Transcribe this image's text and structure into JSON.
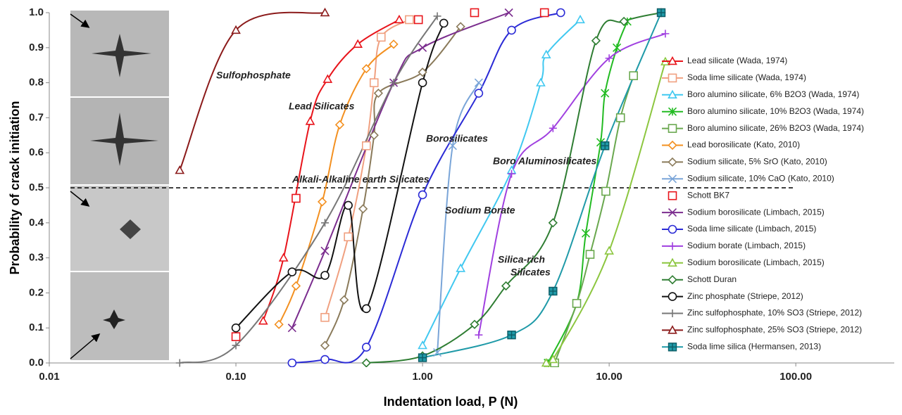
{
  "chart_data": {
    "type": "line",
    "x_label": "Indentation load, P (N)",
    "y_label": "Probability of crack initiation",
    "x_scale": "log",
    "xlim": [
      0.01,
      337
    ],
    "xticks": [
      0.01,
      {
        "value": 0.1,
        "label": "0.10"
      },
      {
        "value": 1,
        "label": "1.00"
      },
      {
        "value": 10,
        "label": "10.00"
      },
      {
        "value": 100,
        "label": "100.00"
      }
    ],
    "ylim": [
      0,
      1
    ],
    "yticks": [
      {
        "value": 0,
        "label": "0.0"
      },
      0.1,
      0.2,
      0.3,
      0.4,
      0.5,
      0.6,
      0.7,
      0.8,
      0.9,
      {
        "value": 1,
        "label": "1.0"
      }
    ],
    "threshold": 0.5,
    "annotations": [
      "Sulfophosphate",
      "Lead Silicates",
      "Alkali-Alkaline earth Silicates",
      "Borosilicates",
      "Boro Aluminosilicates",
      "Sodium Borate",
      "Silica-rich",
      "Silicates"
    ],
    "series": [
      {
        "name": "Lead silicate (Wada, 1974)",
        "color": "#e8141b",
        "marker": "triangle",
        "x": [
          0.14,
          0.18,
          0.25,
          0.31,
          0.45,
          0.75
        ],
        "values": [
          0.12,
          0.3,
          0.69,
          0.81,
          0.91,
          0.98
        ]
      },
      {
        "name": "Soda lime silicate (Wada, 1974)",
        "color": "#f0a080",
        "marker": "square",
        "x": [
          0.3,
          0.4,
          0.5,
          0.55,
          0.6,
          0.85
        ],
        "values": [
          0.13,
          0.36,
          0.62,
          0.8,
          0.93,
          0.98
        ]
      },
      {
        "name": "Boro alumino silicate, 6% B2O3  (Wada, 1974)",
        "color": "#40c8f0",
        "marker": "triangle",
        "x": [
          1.0,
          1.6,
          3.0,
          4.3,
          4.6,
          7.0
        ],
        "values": [
          0.05,
          0.27,
          0.55,
          0.8,
          0.88,
          0.98
        ]
      },
      {
        "name": "Boro alumino silicate, 10% B2O3  (Wada, 1974)",
        "color": "#22bb22",
        "marker": "star",
        "x": [
          4.7,
          6.7,
          7.5,
          9.0,
          9.5,
          11,
          12.5
        ],
        "values": [
          0.0,
          0.17,
          0.37,
          0.63,
          0.77,
          0.9,
          0.975
        ]
      },
      {
        "name": "Boro alumino silicate, 26% B2O3  (Wada, 1974)",
        "color": "#6aa84f",
        "marker": "square",
        "x": [
          5.1,
          6.7,
          7.9,
          9.6,
          11.5,
          13.5
        ],
        "values": [
          0.0,
          0.17,
          0.31,
          0.49,
          0.7,
          0.82
        ]
      },
      {
        "name": "Lead borosilicate (Kato, 2010)",
        "color": "#f39020",
        "marker": "diamond",
        "x": [
          0.17,
          0.21,
          0.29,
          0.36,
          0.5,
          0.7
        ],
        "values": [
          0.11,
          0.22,
          0.46,
          0.68,
          0.84,
          0.91
        ]
      },
      {
        "name": "Sodium silicate, 5% SrO (Kato, 2010)",
        "color": "#8a7a5a",
        "marker": "diamond",
        "x": [
          0.3,
          0.38,
          0.48,
          0.55,
          0.58,
          1.0,
          1.6
        ],
        "values": [
          0.05,
          0.18,
          0.44,
          0.65,
          0.77,
          0.83,
          0.96
        ]
      },
      {
        "name": "Sodium silicate, 10% CaO (Kato, 2010)",
        "color": "#7aa5d8",
        "marker": "x",
        "x": [
          1.2,
          1.45,
          2.0
        ],
        "values": [
          0.03,
          0.62,
          0.8
        ]
      },
      {
        "name": "Schott BK7",
        "color": "#e8141b",
        "marker": "square",
        "show_line": false,
        "x": [
          0.1,
          0.21,
          0.95,
          1.9,
          4.5
        ],
        "values": [
          0.075,
          0.47,
          0.98,
          1.0,
          1.0
        ]
      },
      {
        "name": "Sodium borosilicate (Limbach, 2015)",
        "color": "#7b2d8e",
        "marker": "x",
        "x": [
          0.2,
          0.3,
          0.7,
          1.0,
          2.9
        ],
        "values": [
          0.1,
          0.32,
          0.8,
          0.9,
          1.0
        ]
      },
      {
        "name": "Soda lime silicate (Limbach, 2015)",
        "color": "#2b2bd6",
        "marker": "circle",
        "x": [
          0.2,
          0.3,
          0.5,
          1.0,
          2.0,
          3.0,
          5.5
        ],
        "values": [
          0.0,
          0.01,
          0.045,
          0.48,
          0.77,
          0.95,
          1.0
        ]
      },
      {
        "name": "Sodium borate (Limbach, 2015)",
        "color": "#a040e0",
        "marker": "plus",
        "x": [
          2.0,
          3.0,
          5.0,
          10,
          20
        ],
        "values": [
          0.08,
          0.54,
          0.67,
          0.87,
          0.94
        ]
      },
      {
        "name": "Sodium borosilicate (Limbach, 2015)",
        "color": "#8cc63f",
        "marker": "triangle",
        "x": [
          4.6,
          5.0,
          10,
          20
        ],
        "values": [
          0.0,
          0.01,
          0.32,
          0.86
        ]
      },
      {
        "name": "Schott Duran",
        "color": "#2e7d32",
        "marker": "diamond",
        "x": [
          0.5,
          1.0,
          1.9,
          2.8,
          5.0,
          8.5,
          12,
          19
        ],
        "values": [
          0.0,
          0.02,
          0.11,
          0.22,
          0.4,
          0.92,
          0.975,
          1.0
        ]
      },
      {
        "name": "Zinc phosphate (Striepe, 2012)",
        "color": "#111111",
        "marker": "circle",
        "x": [
          0.1,
          0.2,
          0.3,
          0.4,
          0.5,
          1.0,
          1.3
        ],
        "values": [
          0.1,
          0.26,
          0.25,
          0.45,
          0.155,
          0.8,
          0.97
        ]
      },
      {
        "name": "Zinc sulfophosphate, 10% SO3 (Striepe, 2012)",
        "color": "#777777",
        "marker": "plus",
        "x": [
          0.05,
          0.1,
          0.3,
          0.7,
          1.2
        ],
        "values": [
          0.0,
          0.05,
          0.4,
          0.8,
          0.99
        ]
      },
      {
        "name": "Zinc sulfophosphate, 25% SO3 (Striepe, 2012)",
        "color": "#8b1a1a",
        "marker": "triangle",
        "x": [
          0.05,
          0.1,
          0.3
        ],
        "values": [
          0.55,
          0.95,
          1.0
        ]
      },
      {
        "name": "Soda lime silica (Hermansen, 2013)",
        "color": "#1f9aa8",
        "marker": "squareplus",
        "x": [
          1.0,
          3.0,
          5.0,
          9.5,
          19
        ],
        "values": [
          0.015,
          0.08,
          0.205,
          0.62,
          1.0
        ]
      }
    ]
  }
}
